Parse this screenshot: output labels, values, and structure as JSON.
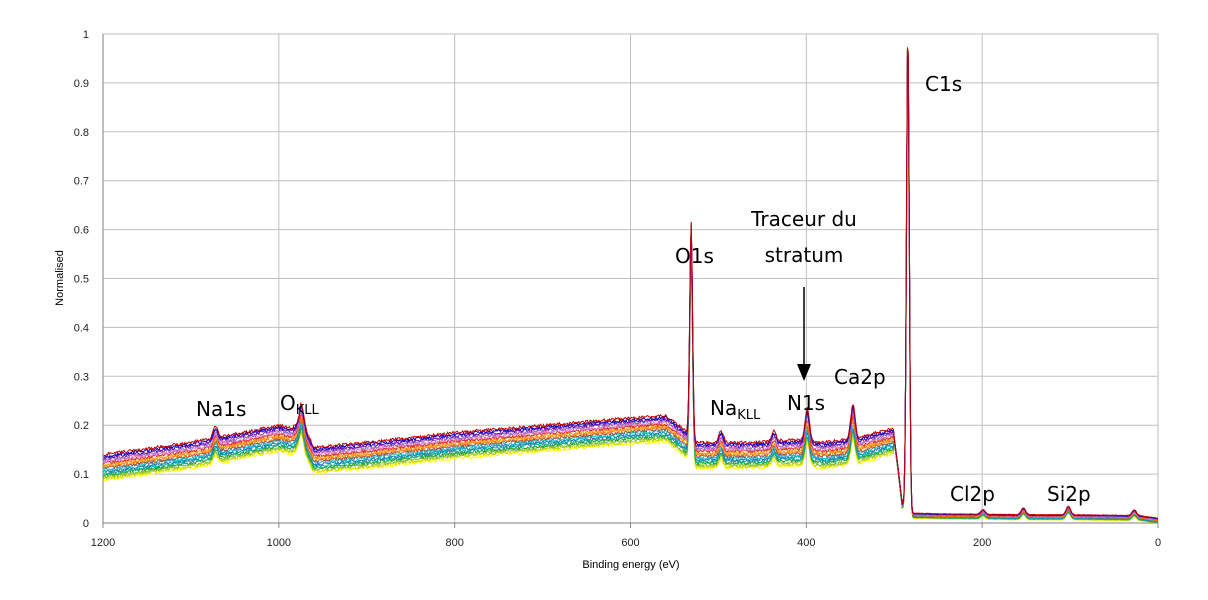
{
  "chart_data": {
    "type": "line",
    "title": "",
    "xlabel": "Binding energy (eV)",
    "ylabel": "Normalised",
    "xlim": [
      1200,
      0
    ],
    "ylim": [
      0,
      1
    ],
    "x_reversed": true,
    "grid": true,
    "legend": "none",
    "x_ticks": [
      "1200",
      "1000",
      "800",
      "600",
      "400",
      "200",
      "0"
    ],
    "y_ticks": [
      "0",
      "0.1",
      "0.2",
      "0.3",
      "0.4",
      "0.5",
      "0.6",
      "0.7",
      "0.8",
      "0.9",
      "1"
    ],
    "series_colors": [
      "#ffff00",
      "#c8d400",
      "#7fbf3f",
      "#2ca02c",
      "#00b0a0",
      "#1f77b4",
      "#17becf",
      "#8c564b",
      "#ff7f0e",
      "#ff9900",
      "#d62728",
      "#e377c2",
      "#9467bd",
      "#6a0dad",
      "#0000cd",
      "#c00000"
    ],
    "series_count": 16,
    "baseline_profile": {
      "x": [
        1200,
        1100,
        1000,
        985,
        975,
        960,
        900,
        800,
        700,
        600,
        560,
        545,
        535,
        531,
        527,
        520,
        500,
        460,
        420,
        400,
        380,
        340,
        320,
        300,
        295,
        291,
        285,
        284,
        283,
        270,
        250,
        200,
        150,
        100,
        50,
        20,
        0
      ],
      "y": [
        0.115,
        0.14,
        0.175,
        0.17,
        0.185,
        0.13,
        0.14,
        0.16,
        0.175,
        0.19,
        0.195,
        0.175,
        0.16,
        0.145,
        0.14,
        0.14,
        0.14,
        0.14,
        0.145,
        0.145,
        0.14,
        0.15,
        0.16,
        0.17,
        0.1,
        0.035,
        0.03,
        0.02,
        0.015,
        0.015,
        0.014,
        0.013,
        0.012,
        0.012,
        0.011,
        0.01,
        0.005
      ]
    },
    "peaks": [
      {
        "x": 1072,
        "height": 0.02,
        "label": "Na1s"
      },
      {
        "x": 974,
        "height": 0.03,
        "label": "O KLL"
      },
      {
        "x": 531,
        "height": 0.45,
        "label": "O1s"
      },
      {
        "x": 497,
        "height": 0.02,
        "label": "Na KLL"
      },
      {
        "x": 437,
        "height": 0.018,
        "label": ""
      },
      {
        "x": 399,
        "height": 0.055,
        "label": "N1s"
      },
      {
        "x": 347,
        "height": 0.06,
        "label": "Ca2p"
      },
      {
        "x": 284.5,
        "height": 0.99,
        "label": "C1s"
      },
      {
        "x": 199,
        "height": 0.008,
        "label": "Cl2p"
      },
      {
        "x": 153,
        "height": 0.012,
        "label": ""
      },
      {
        "x": 102,
        "height": 0.015,
        "label": "Si2p"
      },
      {
        "x": 27,
        "height": 0.01,
        "label": ""
      }
    ],
    "annotations": {
      "na1s": "Na1s",
      "okll_main": "O",
      "okll_sub": "KLL",
      "o1s": "O1s",
      "nakll_main": "Na",
      "nakll_sub": "KLL",
      "tracer_line1": "Traceur du",
      "tracer_line2": "stratum",
      "n1s": "N1s",
      "ca2p": "Ca2p",
      "c1s": "C1s",
      "cl2p": "Cl2p",
      "si2p": "Si2p"
    }
  }
}
